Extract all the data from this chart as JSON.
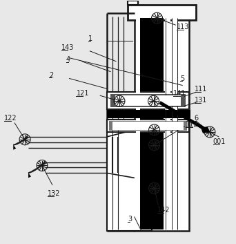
{
  "bg_color": "#e8e8e8",
  "lc": "#1a1a1a",
  "white": "#ffffff",
  "black": "#000000",
  "gray": "#888888"
}
